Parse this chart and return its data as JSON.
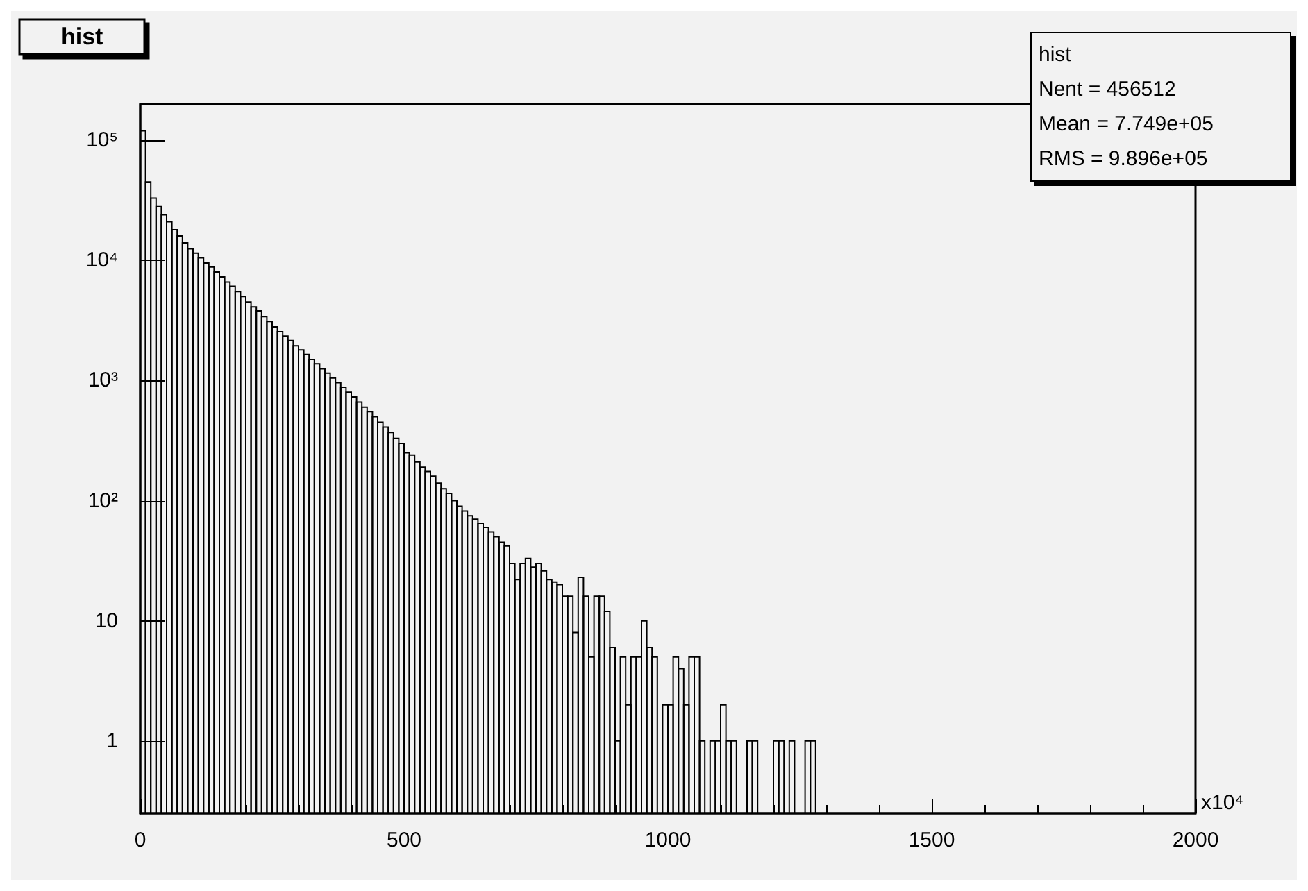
{
  "chart_data": {
    "type": "histogram",
    "title": "hist",
    "xlabel": "x10⁴",
    "bins": [
      0,
      10,
      20,
      30,
      40,
      50,
      60,
      70,
      80,
      90,
      100,
      110,
      120,
      130,
      140,
      150,
      160,
      170,
      180,
      190,
      200,
      210,
      220,
      230,
      240,
      250,
      260,
      270,
      280,
      290,
      300,
      310,
      320,
      330,
      340,
      350,
      360,
      370,
      380,
      390,
      400,
      410,
      420,
      430,
      440,
      450,
      460,
      470,
      480,
      490,
      500,
      510,
      520,
      530,
      540,
      550,
      560,
      570,
      580,
      590,
      600,
      610,
      620,
      630,
      640,
      650,
      660,
      670,
      680,
      690,
      700,
      710,
      720,
      730,
      740,
      750,
      760,
      770,
      780,
      790,
      800,
      810,
      820,
      830,
      840,
      850,
      860,
      870,
      880,
      890,
      900,
      910,
      920,
      930,
      940,
      950,
      960,
      970,
      980,
      990,
      1000,
      1010,
      1020,
      1030,
      1040,
      1050,
      1060,
      1070,
      1080,
      1090,
      1100,
      1110,
      1120,
      1130,
      1140,
      1150,
      1160,
      1170,
      1180,
      1190,
      1200,
      1210,
      1220,
      1230,
      1240,
      1250,
      1260,
      1270,
      1280,
      1290,
      1300
    ],
    "values": [
      120000,
      45000,
      33000,
      28000,
      24000,
      21000,
      18000,
      16000,
      14000,
      12500,
      11500,
      10500,
      9500,
      8800,
      8000,
      7300,
      6600,
      6100,
      5500,
      5000,
      4500,
      4100,
      3800,
      3400,
      3100,
      2800,
      2550,
      2350,
      2150,
      1950,
      1800,
      1650,
      1500,
      1380,
      1250,
      1150,
      1050,
      960,
      880,
      800,
      730,
      660,
      600,
      550,
      500,
      450,
      410,
      370,
      330,
      300,
      250,
      240,
      210,
      190,
      175,
      160,
      140,
      126,
      115,
      100,
      90,
      82,
      75,
      70,
      65,
      60,
      55,
      50,
      45,
      42,
      30,
      22,
      30,
      33,
      28,
      30,
      26,
      22,
      21,
      20,
      16,
      16,
      8,
      23,
      16,
      5,
      16,
      16,
      12,
      6,
      1,
      5,
      2,
      5,
      5,
      10,
      6,
      5,
      null,
      2,
      2,
      5,
      4,
      2,
      5,
      5,
      1,
      null,
      1,
      1,
      2,
      1,
      1,
      null,
      null,
      1,
      1,
      null,
      null,
      null,
      1,
      1,
      null,
      1,
      null,
      null,
      1,
      1,
      null,
      null
    ],
    "color": "#000000",
    "xlim": [
      0,
      2000
    ],
    "xticks": [
      0,
      500,
      1000,
      1500,
      2000
    ],
    "ylim": [
      0.25,
      200000
    ],
    "log": "y",
    "yticks": [
      1,
      10,
      {
        "value": 100,
        "label": "10²"
      },
      {
        "value": 1000,
        "label": "10³"
      },
      {
        "value": 10000,
        "label": "10⁴"
      },
      {
        "value": 100000,
        "label": "10⁵"
      }
    ],
    "grid": false,
    "annotations": [
      "hist",
      "Nent = 456512",
      "Mean = 7.749e+05",
      "RMS = 9.896e+05"
    ]
  }
}
